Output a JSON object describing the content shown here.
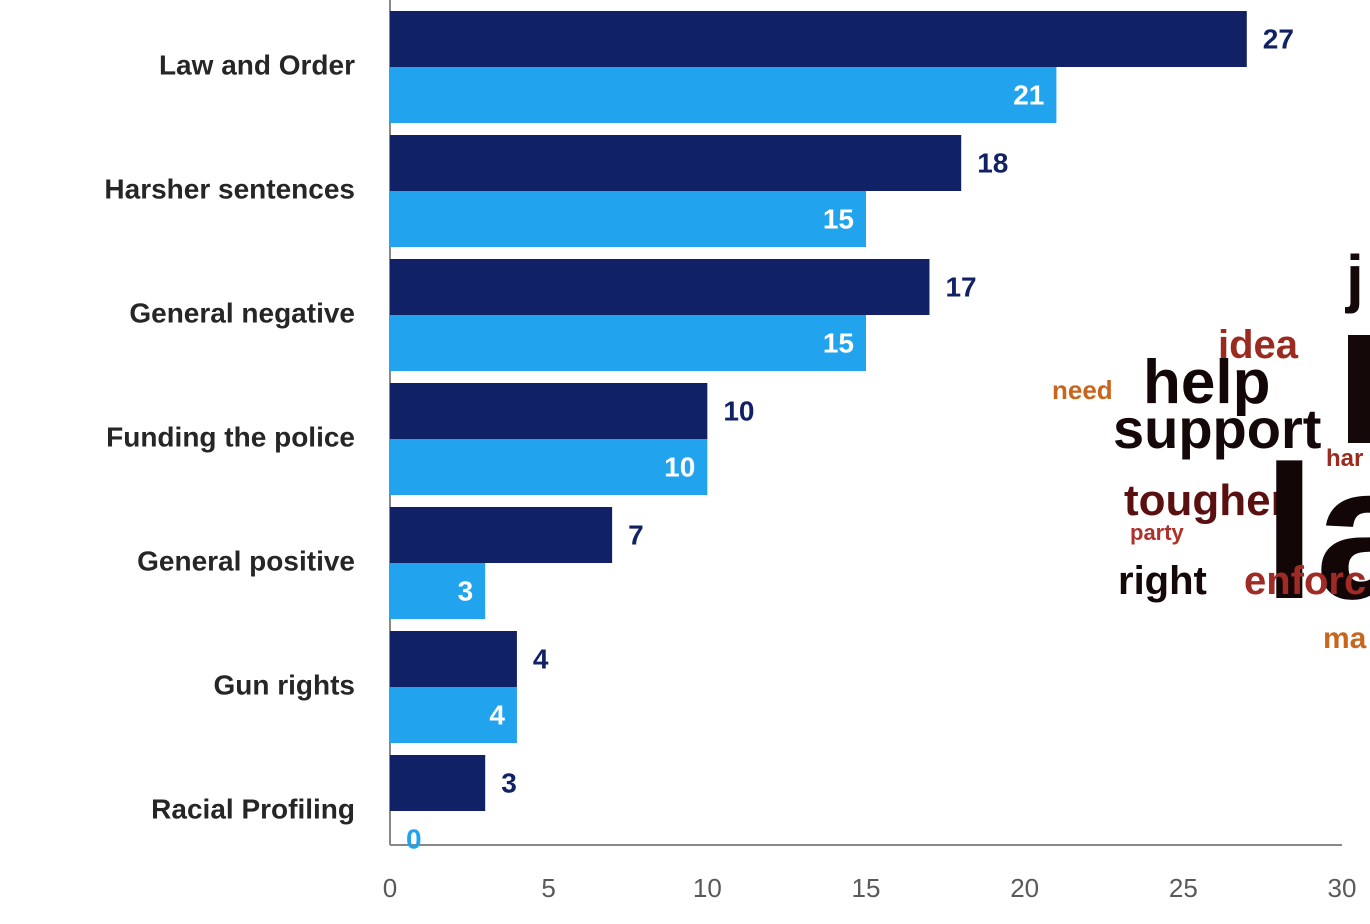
{
  "chart_data": {
    "type": "hbar",
    "categories": [
      "Law and Order",
      "Harsher sentences",
      "General negative",
      "Funding the police",
      "General positive",
      "Gun rights",
      "Racial Profiling"
    ],
    "series": [
      {
        "color": "#112166",
        "values": [
          27,
          18,
          17,
          10,
          7,
          4,
          3
        ]
      },
      {
        "color": "#22a3ee",
        "values": [
          21,
          15,
          15,
          10,
          3,
          4,
          0
        ]
      }
    ],
    "xlim": [
      0,
      30
    ],
    "xticks": [
      0,
      5,
      10,
      15,
      20,
      25,
      30
    ],
    "grid": false
  },
  "word_cloud": {
    "words": [
      "j",
      "idea",
      "help",
      "need",
      "support",
      "har",
      "tougher",
      "la",
      "party",
      "right",
      "enforc",
      "ma"
    ]
  }
}
